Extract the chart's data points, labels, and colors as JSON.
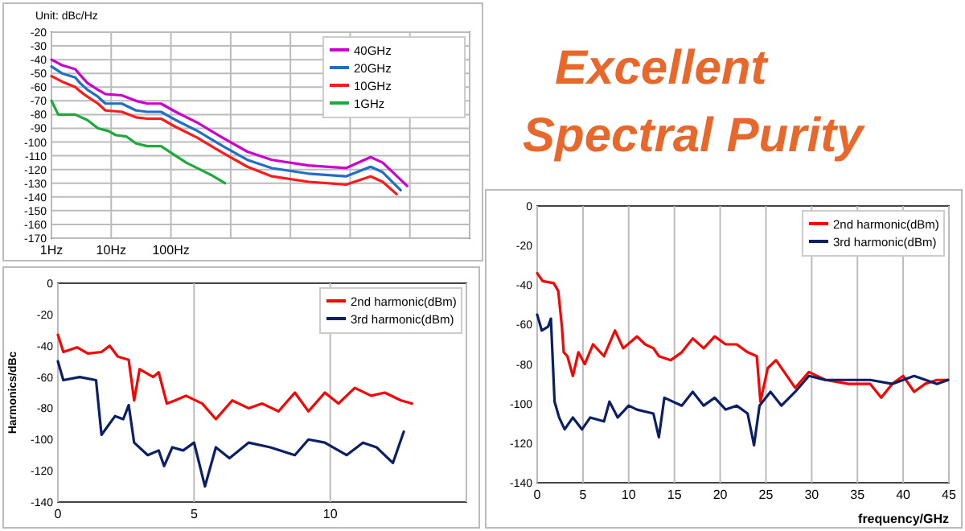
{
  "chart_data": [
    {
      "type": "line",
      "log": "x",
      "annotations": [
        "Unit: dBc/Hz"
      ],
      "xlim": [
        1,
        10000000
      ],
      "xticks": [
        {
          "value": 1,
          "label": "1Hz"
        },
        {
          "value": 10,
          "label": "10Hz"
        },
        {
          "value": 100,
          "label": "100Hz"
        },
        {
          "value": 1000,
          "label": null
        },
        {
          "value": 10000,
          "label": null
        },
        {
          "value": 100000,
          "label": null
        },
        {
          "value": 1000000,
          "label": null
        },
        {
          "value": 10000000,
          "label": null
        }
      ],
      "ylim": [
        -170,
        -20
      ],
      "yticks": [
        -170,
        -160,
        -150,
        -140,
        -130,
        -120,
        -110,
        -100,
        -90,
        -80,
        -70,
        -60,
        -50,
        -40,
        -30,
        -20
      ],
      "grid": true,
      "legend": "top right",
      "series": [
        {
          "name": "40GHz",
          "color": "#cc00cc",
          "x": [
            1,
            1.5,
            2.5,
            3,
            4,
            6,
            8,
            15,
            26,
            40,
            68,
            120,
            280,
            740,
            1900,
            4900,
            20000,
            85000,
            220000,
            350000,
            900000
          ],
          "values": [
            -40,
            -44,
            -47,
            -51,
            -57,
            -62,
            -65,
            -66,
            -70,
            -72,
            -72,
            -78,
            -86,
            -97,
            -107,
            -113,
            -117,
            -119,
            -111,
            -115,
            -132
          ]
        },
        {
          "name": "20GHz",
          "color": "#1f6fc4",
          "x": [
            1,
            1.5,
            2.5,
            3,
            4,
            6,
            8,
            15,
            26,
            40,
            68,
            120,
            280,
            740,
            1900,
            4900,
            20000,
            85000,
            220000,
            350000,
            700000
          ],
          "values": [
            -45,
            -50,
            -53,
            -57,
            -62,
            -67,
            -72,
            -72,
            -77,
            -78,
            -78,
            -84,
            -92,
            -103,
            -113,
            -119,
            -123,
            -125,
            -118,
            -122,
            -135
          ]
        },
        {
          "name": "10GHz",
          "color": "#ff1a1a",
          "x": [
            1,
            1.5,
            2.5,
            3,
            4,
            6,
            8,
            15,
            26,
            40,
            68,
            120,
            280,
            740,
            1900,
            4900,
            20000,
            85000,
            220000,
            350000,
            600000
          ],
          "values": [
            -52,
            -56,
            -60,
            -63,
            -67,
            -72,
            -77,
            -78,
            -82,
            -83,
            -83,
            -89,
            -97,
            -108,
            -118,
            -125,
            -129,
            -131,
            -125,
            -129,
            -138
          ]
        },
        {
          "name": "1GHz",
          "color": "#1aab3a",
          "x": [
            1,
            1.3,
            2.5,
            4,
            6,
            9,
            12,
            18,
            26,
            40,
            68,
            180,
            470,
            800
          ],
          "values": [
            -70,
            -80,
            -80,
            -84,
            -90,
            -92,
            -95,
            -96,
            -101,
            -103,
            -103,
            -115,
            -124,
            -130
          ]
        }
      ]
    },
    {
      "type": "other",
      "title": "Excellent Spectral Purity"
    },
    {
      "type": "line",
      "ylabel": "Harmonics/dBc",
      "xlim": [
        0,
        15
      ],
      "xticks": [
        0,
        5,
        10,
        {
          "value": 15,
          "label": null
        }
      ],
      "ylim": [
        -140,
        0
      ],
      "yticks": [
        -140,
        -120,
        -100,
        -80,
        -60,
        -40,
        -20,
        0
      ],
      "grid": "x",
      "legend": "top right",
      "series": [
        {
          "name": "2nd harmonic(dBm)",
          "color": "#ff0000",
          "x": [
            0,
            0.2,
            0.7,
            1.1,
            1.6,
            1.9,
            2.2,
            2.6,
            2.8,
            3.0,
            3.5,
            3.7,
            4.0,
            4.3,
            4.7,
            5.3,
            5.8,
            6.4,
            7.0,
            7.5,
            8.1,
            8.7,
            9.2,
            9.8,
            10.3,
            10.9,
            11.5,
            12.0,
            12.6,
            13.0
          ],
          "values": [
            -33,
            -44,
            -41,
            -45,
            -44,
            -40,
            -47,
            -49,
            -75,
            -55,
            -60,
            -57,
            -77,
            -75,
            -72,
            -77,
            -87,
            -75,
            -80,
            -77,
            -82,
            -70,
            -82,
            -70,
            -77,
            -67,
            -72,
            -70,
            -75,
            -77
          ]
        },
        {
          "name": "3rd harmonic(dBm)",
          "color": "#0a1f66",
          "x": [
            0,
            0.2,
            0.8,
            1.4,
            1.6,
            2.1,
            2.4,
            2.6,
            2.8,
            3.3,
            3.7,
            3.9,
            4.2,
            4.6,
            5.0,
            5.4,
            5.8,
            6.3,
            7.0,
            7.8,
            8.7,
            9.2,
            9.8,
            10.6,
            11.2,
            11.7,
            12.3,
            12.7
          ],
          "values": [
            -50,
            -62,
            -60,
            -62,
            -97,
            -85,
            -87,
            -78,
            -102,
            -110,
            -107,
            -117,
            -105,
            -107,
            -102,
            -130,
            -105,
            -112,
            -102,
            -105,
            -110,
            -100,
            -102,
            -110,
            -102,
            -105,
            -115,
            -95
          ]
        }
      ]
    },
    {
      "type": "line",
      "xlabel": "frequency/GHz",
      "xlim": [
        0,
        45
      ],
      "xticks": [
        0,
        5,
        10,
        15,
        20,
        25,
        30,
        35,
        40,
        45
      ],
      "ylim": [
        -140,
        0
      ],
      "yticks": [
        -140,
        -120,
        -100,
        -80,
        -60,
        -40,
        -20,
        0
      ],
      "grid": "x",
      "legend": "top right",
      "series": [
        {
          "name": "2nd harmonic(dBm)",
          "color": "#ff0000",
          "x": [
            0,
            0.6,
            1.8,
            2.3,
            2.7,
            2.9,
            3.3,
            3.9,
            4.5,
            5.2,
            6.1,
            7.3,
            8.5,
            9.4,
            10.9,
            11.8,
            12.7,
            13.3,
            14.6,
            15.8,
            17,
            18.2,
            19.4,
            20.6,
            21.8,
            23,
            24,
            24.4,
            25.2,
            26.1,
            27,
            28.2,
            29.7,
            31.5,
            34,
            36.4,
            37.6,
            38.8,
            40,
            41.2,
            42.4,
            43.7,
            44.9
          ],
          "values": [
            -34,
            -38,
            -39,
            -43,
            -61,
            -74,
            -76,
            -86,
            -74,
            -80,
            -70,
            -76,
            -63,
            -72,
            -66,
            -70,
            -72,
            -76,
            -78,
            -74,
            -67,
            -72,
            -66,
            -70,
            -70,
            -74,
            -76,
            -99,
            -82,
            -78,
            -84,
            -92,
            -84,
            -88,
            -90,
            -90,
            -97,
            -90,
            -86,
            -94,
            -90,
            -88,
            -88
          ]
        },
        {
          "name": "3rd harmonic(dBm)",
          "color": "#0a1f66",
          "x": [
            0,
            0.5,
            1.2,
            1.5,
            1.9,
            2.4,
            3,
            3.9,
            4.9,
            5.8,
            7.3,
            7.9,
            8.8,
            10,
            10.9,
            12.7,
            13.3,
            13.9,
            15.8,
            17,
            18.2,
            19.4,
            20.6,
            21.8,
            23,
            23.7,
            24.3,
            25.5,
            26.7,
            28.2,
            29.7,
            31.5,
            34,
            36.4,
            38.8,
            41.2,
            43.7,
            44.9
          ],
          "values": [
            -55,
            -63,
            -61,
            -57,
            -99,
            -107,
            -113,
            -107,
            -113,
            -107,
            -109,
            -99,
            -107,
            -101,
            -103,
            -105,
            -117,
            -97,
            -101,
            -94,
            -101,
            -97,
            -103,
            -101,
            -105,
            -121,
            -101,
            -94,
            -101,
            -94,
            -86,
            -88,
            -88,
            -88,
            -90,
            -86,
            -90,
            -88
          ]
        }
      ]
    }
  ]
}
